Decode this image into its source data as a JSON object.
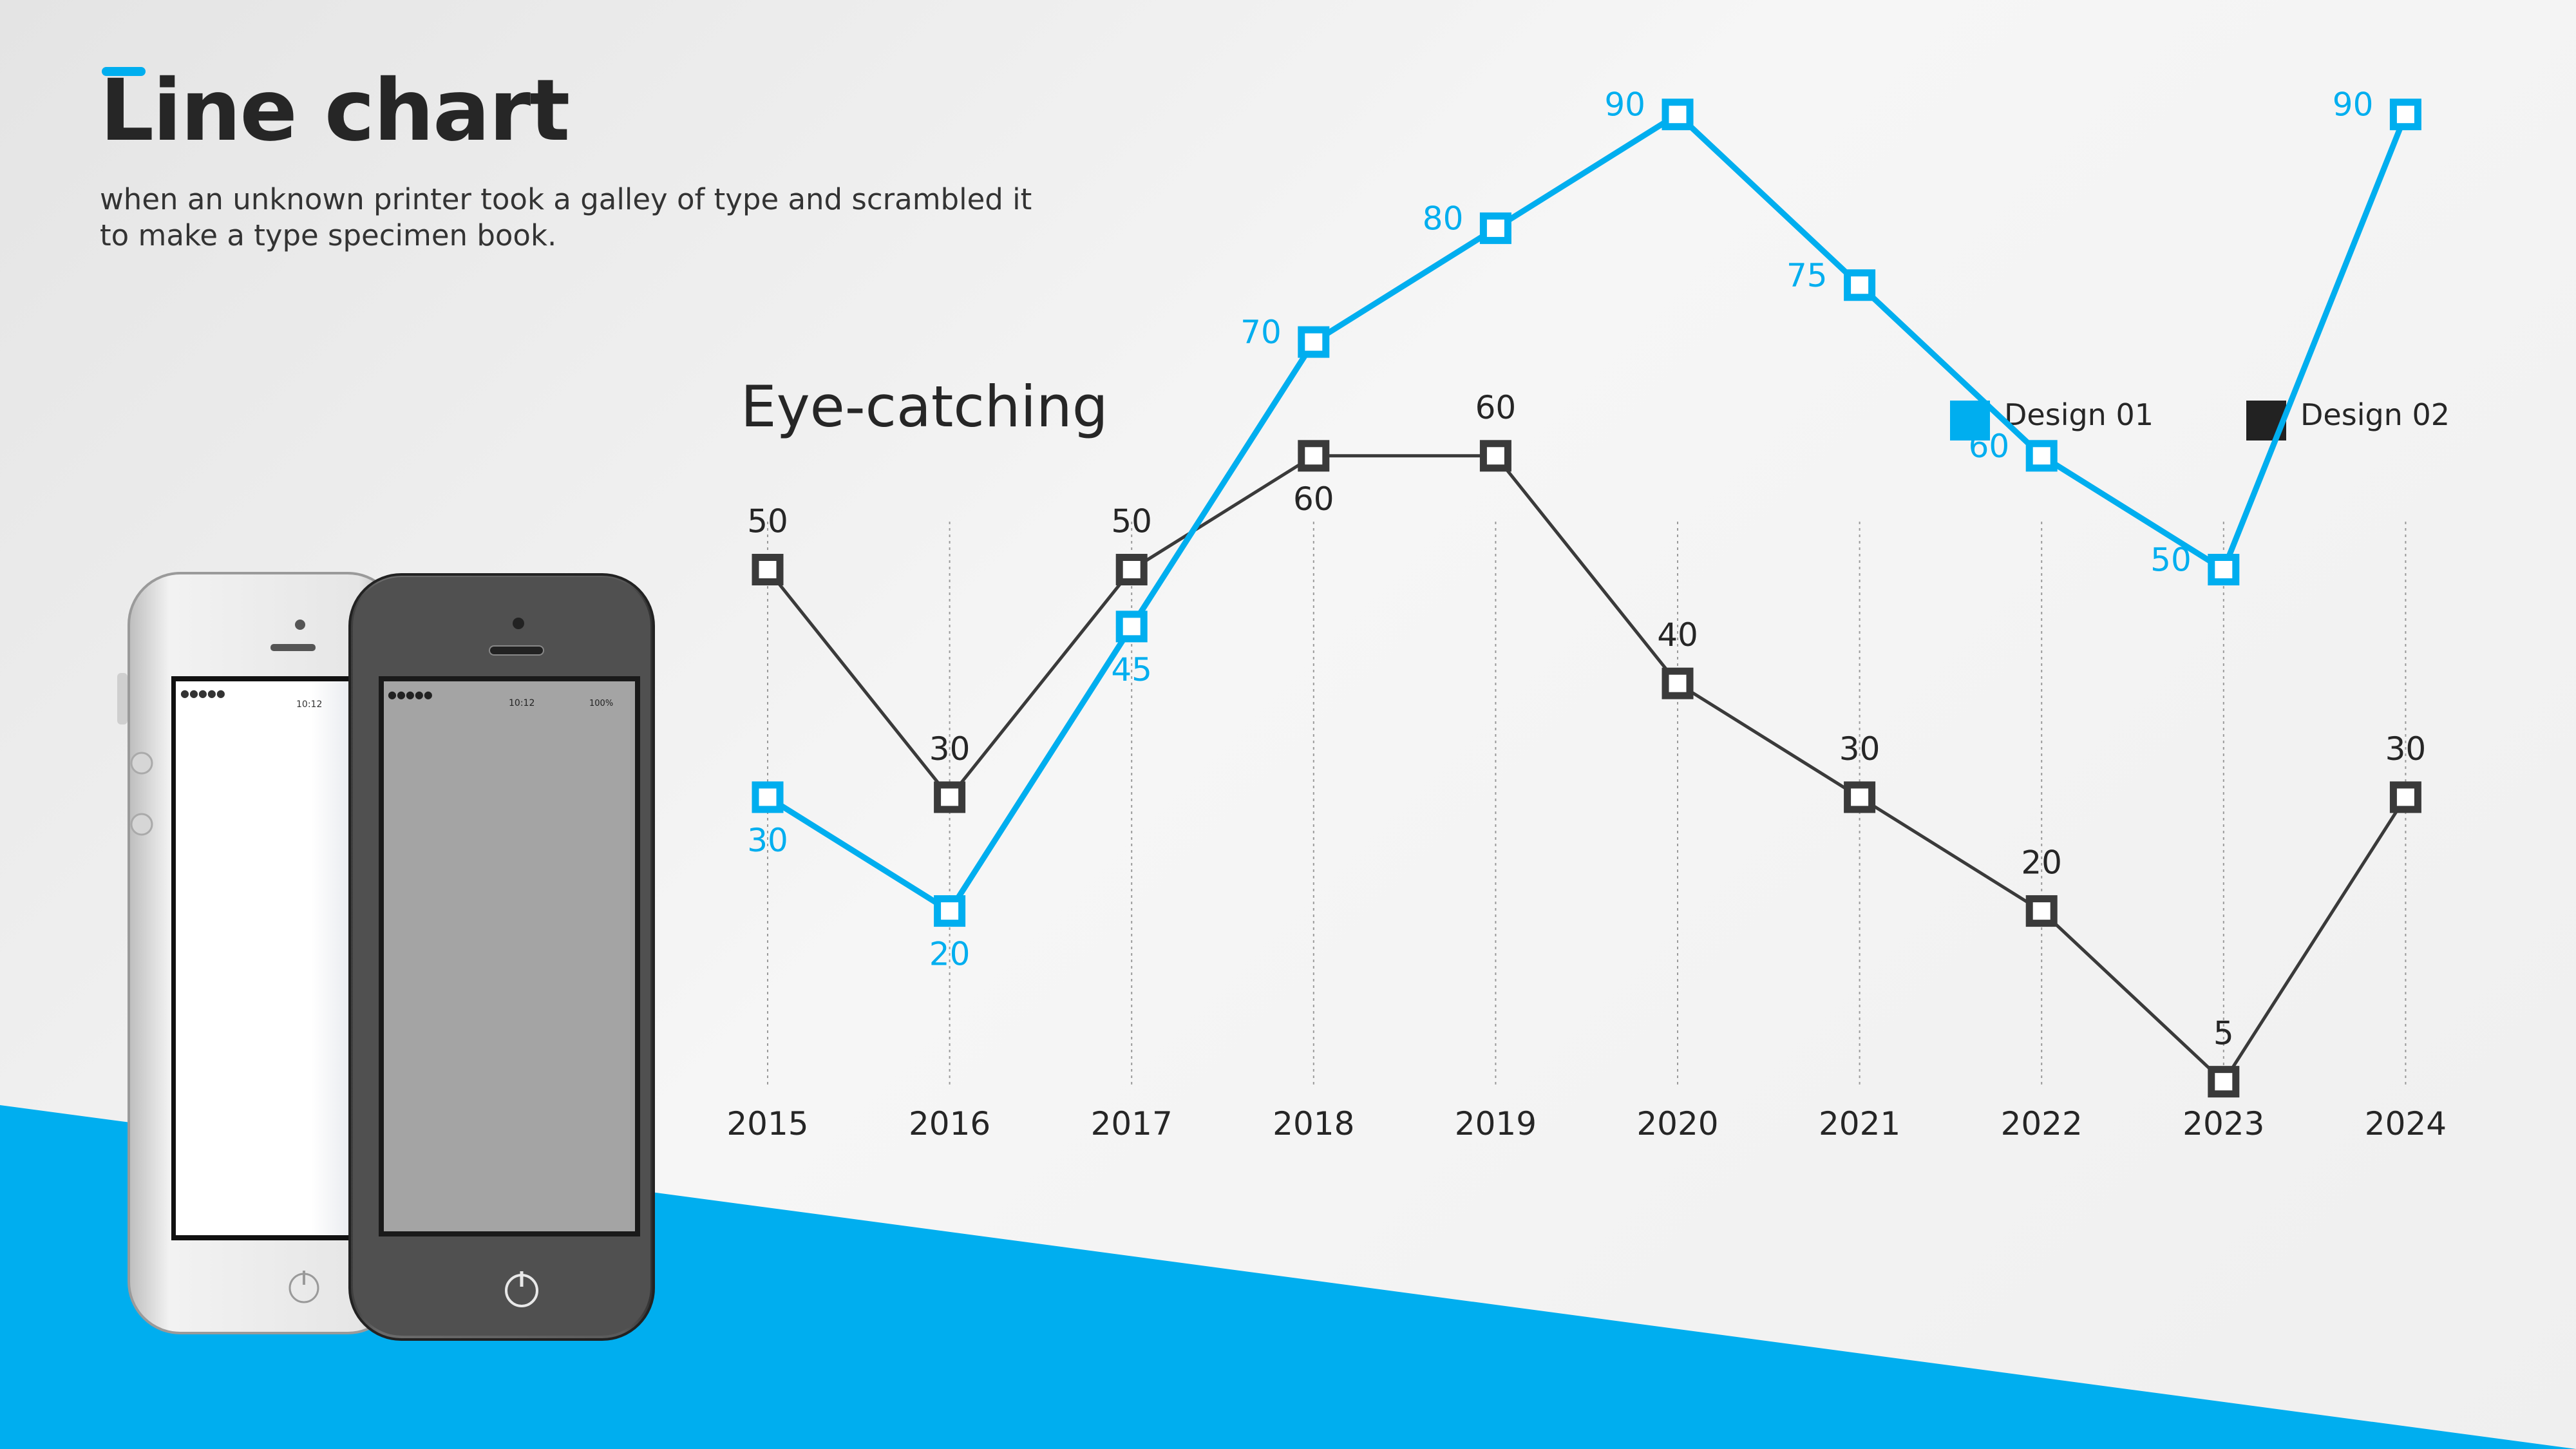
{
  "header": {
    "title": "Line chart",
    "subtitle_line1": "when an unknown printer took a galley of type and scrambled it",
    "subtitle_line2": "to make a type specimen book."
  },
  "phones": {
    "white_phone_time": "10:12",
    "dark_phone_time": "10:12",
    "dark_phone_battery": "100%"
  },
  "colors": {
    "accent": "#00aeef",
    "design02": "#3a3a3a",
    "text": "#262626"
  },
  "chart_data": {
    "type": "line",
    "title": "Eye-catching",
    "categories": [
      "2015",
      "2016",
      "2017",
      "2018",
      "2019",
      "2020",
      "2021",
      "2022",
      "2023",
      "2024"
    ],
    "series": [
      {
        "name": "Design 01",
        "color": "#00aeef",
        "values": [
          30,
          20,
          45,
          70,
          80,
          90,
          75,
          60,
          50,
          90
        ]
      },
      {
        "name": "Design 02",
        "color": "#3a3a3a",
        "values": [
          50,
          30,
          50,
          60,
          60,
          40,
          30,
          20,
          5,
          30
        ]
      }
    ],
    "xlabel": "",
    "ylabel": "",
    "ylim": [
      0,
      100
    ],
    "grid": "vertical-dotted",
    "legend": "top-right"
  }
}
